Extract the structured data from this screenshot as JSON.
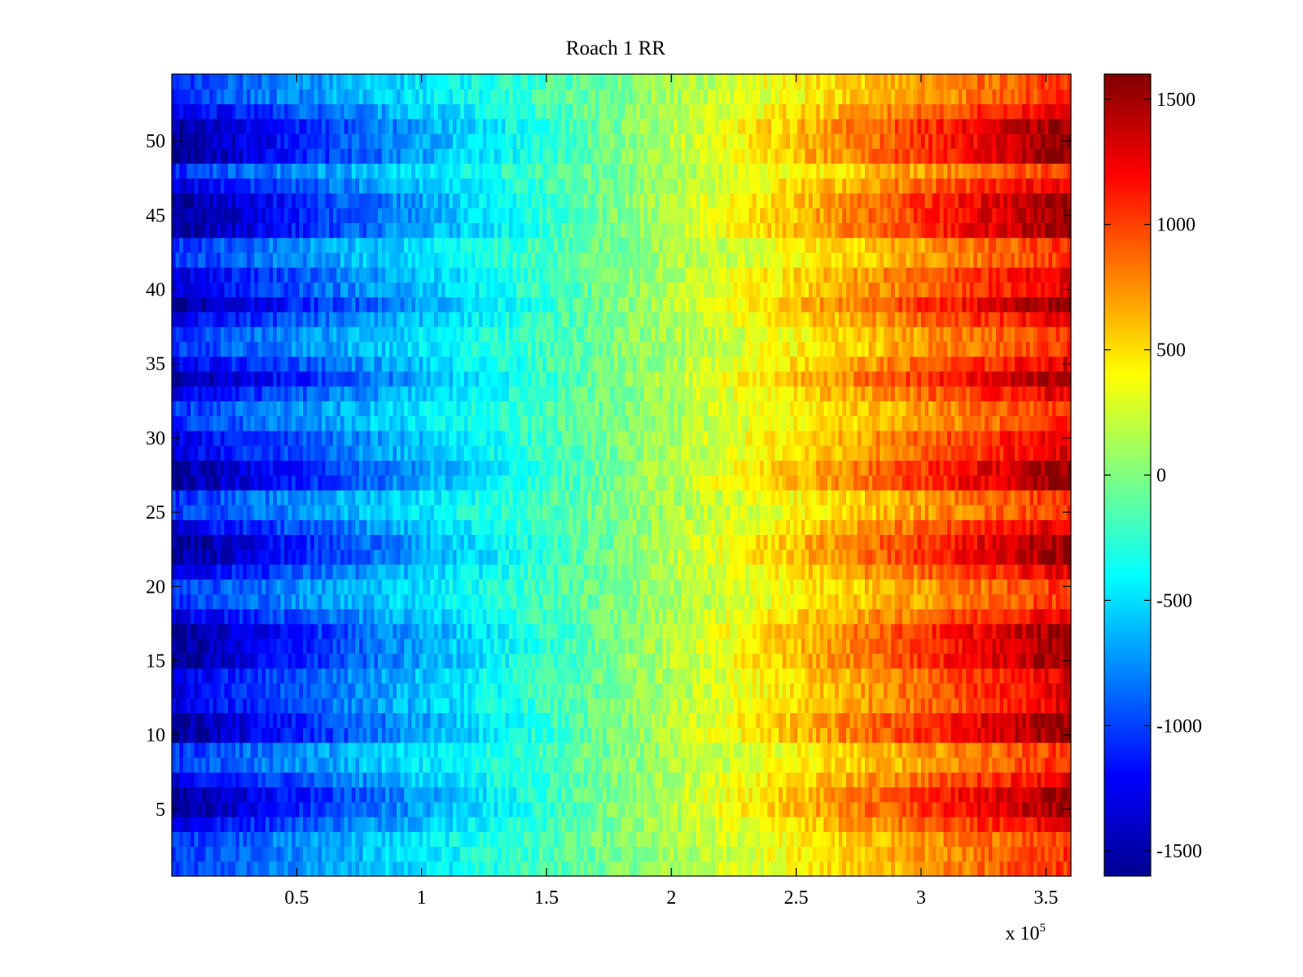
{
  "chart_data": {
    "type": "heatmap",
    "title": "Roach 1 RR",
    "xlabel": "",
    "ylabel": "",
    "x_exponent_label": "x 10",
    "x_exponent_power": "5",
    "xlim": [
      0,
      3.6
    ],
    "ylim": [
      0.5,
      54.5
    ],
    "x_ticks": [
      0.5,
      1,
      1.5,
      2,
      2.5,
      3,
      3.5
    ],
    "x_tick_labels": [
      "0.5",
      "1",
      "1.5",
      "2",
      "2.5",
      "3",
      "3.5"
    ],
    "y_ticks": [
      5,
      10,
      15,
      20,
      25,
      30,
      35,
      40,
      45,
      50
    ],
    "y_tick_labels": [
      "5",
      "10",
      "15",
      "20",
      "25",
      "30",
      "35",
      "40",
      "45",
      "50"
    ],
    "rows": 54,
    "colormap": "jet",
    "colorbar": {
      "clim": [
        -1600,
        1600
      ],
      "ticks": [
        1500,
        1000,
        500,
        0,
        -500,
        -1000,
        -1500
      ],
      "tick_labels": [
        "1500",
        "1000",
        "500",
        "0",
        "-500",
        "-1000",
        "-1500"
      ]
    },
    "value_model": {
      "description": "Values increase roughly linearly from left (about -1500) to right (about +1500); row amplitude varies by channel",
      "low_amplitude_rows": [
        1,
        2,
        3,
        8,
        9,
        19,
        20,
        25,
        26,
        31,
        32,
        36,
        37,
        42,
        43,
        48,
        53,
        54
      ],
      "high_amplitude_rows": [
        5,
        6,
        10,
        11,
        15,
        16,
        17,
        22,
        23,
        27,
        28,
        34,
        39,
        44,
        45,
        46,
        49,
        50,
        51
      ]
    }
  }
}
